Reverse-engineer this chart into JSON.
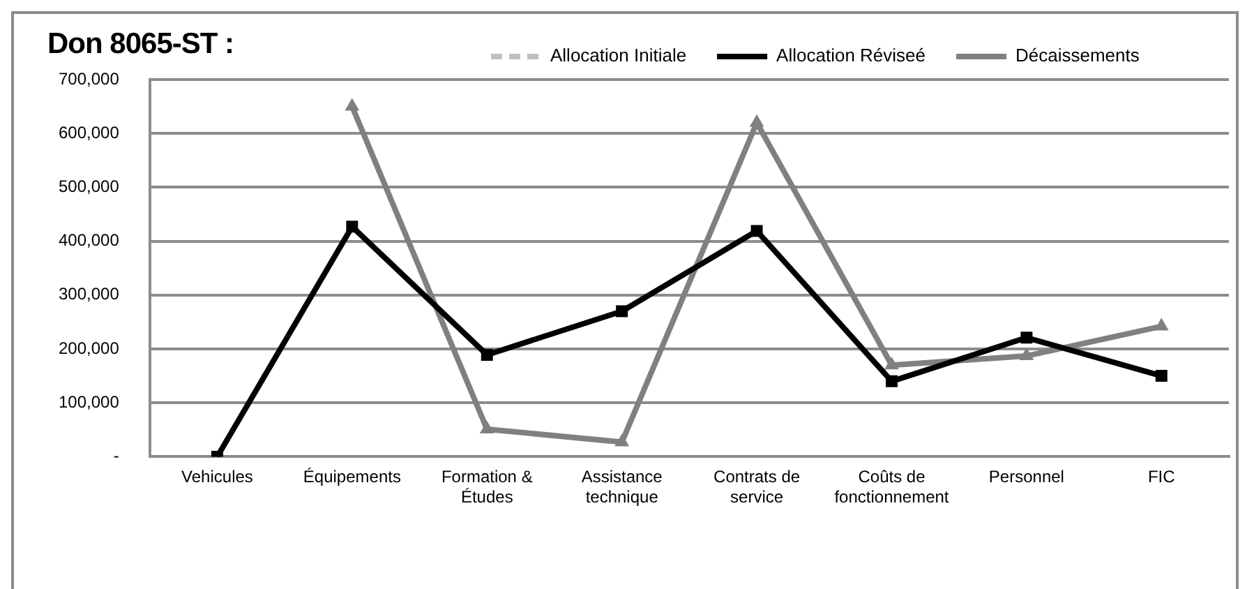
{
  "chart_data": {
    "type": "line",
    "title": "Don 8065-ST :",
    "categories": [
      "Vehicules",
      "Équipements",
      "Formation & Études",
      "Assistance technique",
      "Contrats de service",
      "Coûts de fonctionnement",
      "Personnel",
      "FIC"
    ],
    "series": [
      {
        "name": "Allocation Initiale",
        "color": "#c0c0c0",
        "marker": "diamond",
        "line_style": "dashed",
        "values": [
          null,
          null,
          null,
          null,
          null,
          null,
          null,
          null
        ]
      },
      {
        "name": "Allocation Réviseé",
        "color": "#000000",
        "marker": "square",
        "values": [
          0,
          427000,
          189000,
          270000,
          419000,
          140000,
          221000,
          150000
        ]
      },
      {
        "name": "Décaissements",
        "color": "#808080",
        "marker": "triangle",
        "values": [
          null,
          650000,
          51000,
          27000,
          620000,
          170000,
          187000,
          242000
        ]
      }
    ],
    "ylim": [
      0,
      700000
    ],
    "yticks": [
      {
        "value": 0,
        "label": "-"
      },
      {
        "value": 100000,
        "label": "100,000"
      },
      {
        "value": 200000,
        "label": "200,000"
      },
      {
        "value": 300000,
        "label": "300,000"
      },
      {
        "value": 400000,
        "label": "400,000"
      },
      {
        "value": 500000,
        "label": "500,000"
      },
      {
        "value": 600000,
        "label": "600,000"
      },
      {
        "value": 700000,
        "label": "700,000"
      }
    ],
    "grid": "y",
    "legend": "top"
  }
}
